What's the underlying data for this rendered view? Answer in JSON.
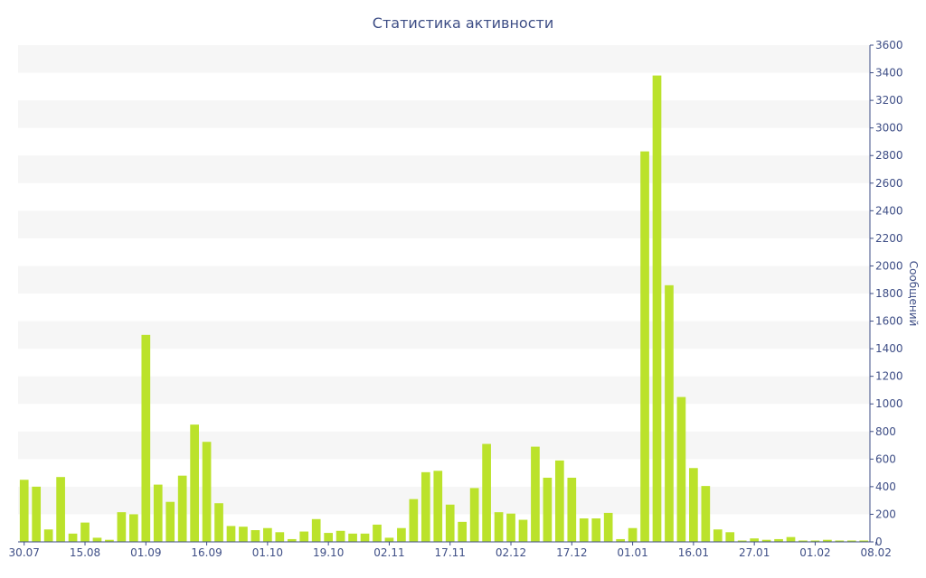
{
  "chart_data": {
    "type": "bar",
    "title": "Статистика активности",
    "xlabel": "",
    "ylabel": "Сообщений",
    "ylim": [
      0,
      3600
    ],
    "y_axis_position": "right",
    "y_ticks": [
      0,
      200,
      400,
      600,
      800,
      1000,
      1200,
      1400,
      1600,
      1800,
      2000,
      2200,
      2400,
      2600,
      2800,
      3000,
      3200,
      3400,
      3600
    ],
    "x_tick_labels": [
      {
        "label": "30.07",
        "index": 0
      },
      {
        "label": "15.08",
        "index": 5
      },
      {
        "label": "01.09",
        "index": 10
      },
      {
        "label": "16.09",
        "index": 15
      },
      {
        "label": "01.10",
        "index": 20
      },
      {
        "label": "19.10",
        "index": 25
      },
      {
        "label": "02.11",
        "index": 30
      },
      {
        "label": "17.11",
        "index": 35
      },
      {
        "label": "02.12",
        "index": 40
      },
      {
        "label": "17.12",
        "index": 45
      },
      {
        "label": "01.01",
        "index": 50
      },
      {
        "label": "16.01",
        "index": 55
      },
      {
        "label": "27.01",
        "index": 60
      },
      {
        "label": "01.02",
        "index": 65
      },
      {
        "label": "08.02",
        "index": 70
      }
    ],
    "values": [
      450,
      400,
      90,
      470,
      60,
      140,
      30,
      15,
      215,
      200,
      1500,
      415,
      290,
      480,
      850,
      725,
      280,
      115,
      110,
      85,
      100,
      70,
      20,
      75,
      165,
      65,
      80,
      60,
      60,
      125,
      30,
      100,
      310,
      505,
      515,
      270,
      145,
      390,
      710,
      215,
      205,
      160,
      690,
      465,
      590,
      465,
      170,
      170,
      210,
      20,
      100,
      2830,
      3380,
      1860,
      1050,
      535,
      405,
      90,
      70,
      10,
      25,
      15,
      20,
      35,
      10,
      10,
      15,
      10,
      10,
      10
    ],
    "bar_color": "#bbe22b",
    "grid": true,
    "grid_style": "alternating bands"
  },
  "colors": {
    "bar": "#bbe22b",
    "band": "#f6f6f6",
    "axis": "#3e4e86",
    "text": "#3e4e86"
  }
}
